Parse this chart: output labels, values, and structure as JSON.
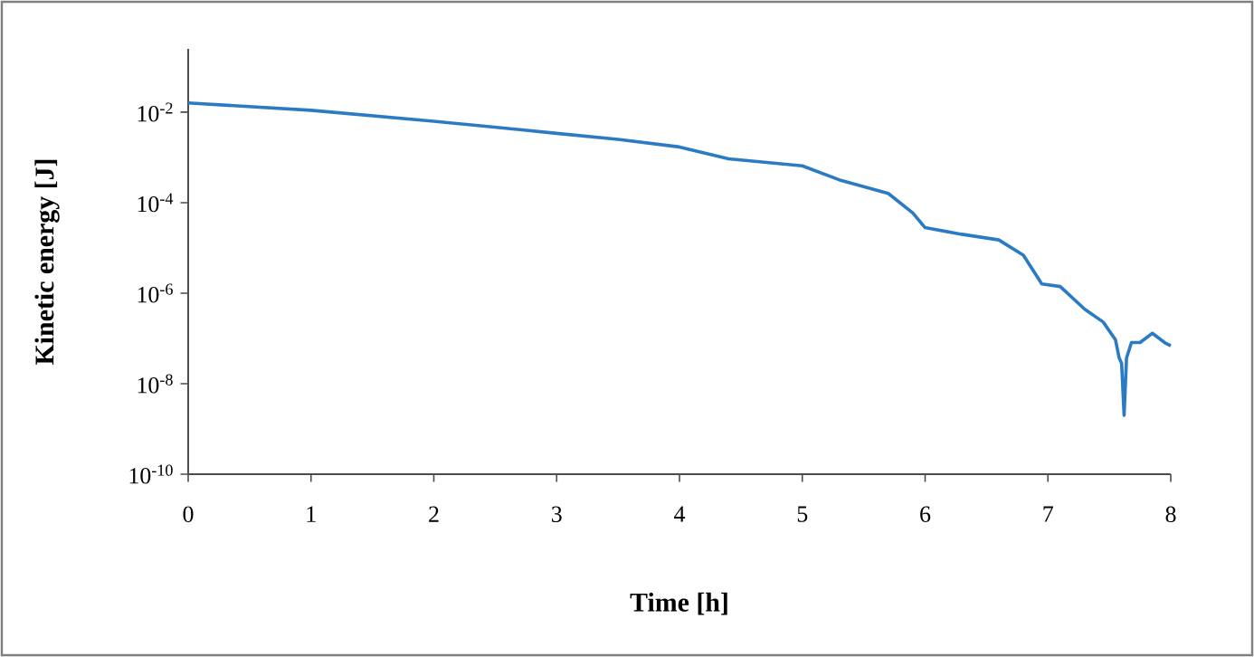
{
  "chart_data": {
    "type": "line",
    "xlabel": "Time [h]",
    "ylabel": "Kinetic energy [J]",
    "log": "y",
    "xlim": [
      0,
      8
    ],
    "xticks": [
      0,
      1,
      2,
      3,
      4,
      5,
      6,
      7,
      8
    ],
    "ylim": [
      1e-10,
      0.25
    ],
    "yticks": [
      {
        "value": 1e-10,
        "label": "10$^{-10}$"
      },
      {
        "value": 1e-08,
        "label": "10$^{-8}$"
      },
      {
        "value": 1e-06,
        "label": "10$^{-6}$"
      },
      {
        "value": 0.0001,
        "label": "10$^{-4}$"
      },
      {
        "value": 0.01,
        "label": "10$^{-2}$"
      }
    ],
    "grid": false,
    "marker": "none",
    "line_style": "solid",
    "series": [
      {
        "color": "#2b7bc4",
        "x": [
          0,
          1,
          2,
          2.7,
          3,
          3.5,
          4,
          4.4,
          5,
          5.3,
          5.7,
          5.9,
          6.0,
          6.3,
          6.6,
          6.8,
          6.95,
          7.1,
          7.3,
          7.45,
          7.55,
          7.58,
          7.6,
          7.62,
          7.64,
          7.68,
          7.75,
          7.85,
          7.95,
          8
        ],
        "values": [
          0.016,
          0.011,
          0.0063,
          0.0041,
          0.0034,
          0.0025,
          0.0017,
          0.00093,
          0.00065,
          0.00032,
          0.00016,
          5.9e-05,
          2.8e-05,
          2e-05,
          1.5e-05,
          6.9e-06,
          1.6e-06,
          1.4e-06,
          4.4e-07,
          2.3e-07,
          9.3e-08,
          3.7e-08,
          2.8e-08,
          2e-09,
          3.7e-08,
          8.1e-08,
          8.1e-08,
          1.3e-07,
          8.1e-08,
          6.9e-08
        ]
      }
    ]
  }
}
